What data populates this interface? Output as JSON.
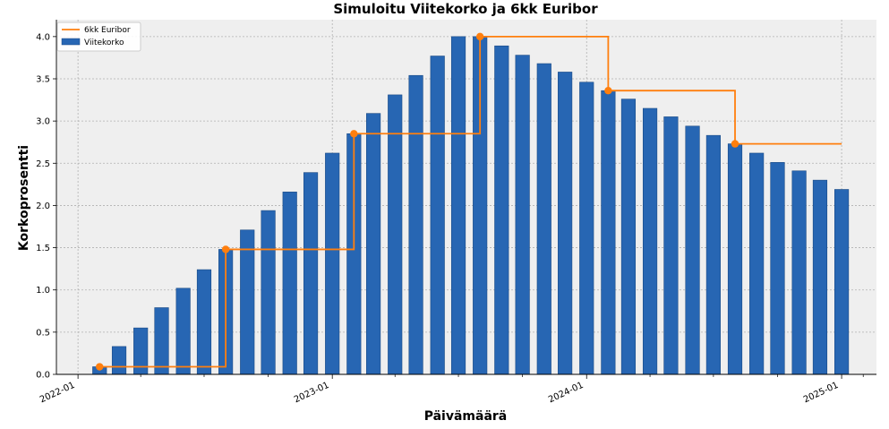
{
  "chart_data": {
    "type": "bar",
    "title": "Simuloitu Viitekorko ja 6kk Euribor",
    "xlabel": "Päivämäärä",
    "ylabel": "Korkoprosentti",
    "ylim": [
      0,
      4.2
    ],
    "y_ticks": [
      0.0,
      0.5,
      1.0,
      1.5,
      2.0,
      2.5,
      3.0,
      3.5,
      4.0
    ],
    "y_tick_labels": [
      "0.0",
      "0.5",
      "1.0",
      "1.5",
      "2.0",
      "2.5",
      "3.0",
      "3.5",
      "4.0"
    ],
    "x_range": [
      "2021-12-01",
      "2025-02-20"
    ],
    "x_major_ticks": [
      "2022-01-01",
      "2023-01-01",
      "2024-01-01",
      "2025-01-01"
    ],
    "x_major_tick_labels": [
      "2022-01",
      "2023-01",
      "2024-01",
      "2025-01"
    ],
    "x_minor_ticks": [
      "2022-04-01",
      "2022-07-01",
      "2022-10-01",
      "2023-04-01",
      "2023-07-01",
      "2023-10-01",
      "2024-04-01",
      "2024-07-01",
      "2024-10-01",
      "2025-02-01"
    ],
    "grid": true,
    "legend_position": "upper-left",
    "colors": {
      "bar_fill": "#2766b3",
      "bar_edge": "#1a4a85",
      "line": "#ff7f0e",
      "plot_background": "#efefef",
      "grid": "#b0b0b0"
    },
    "series": [
      {
        "name": "Viitekorko",
        "kind": "bar",
        "x": [
          "2022-02-01",
          "2022-03-01",
          "2022-04-01",
          "2022-05-01",
          "2022-06-01",
          "2022-07-01",
          "2022-08-01",
          "2022-09-01",
          "2022-10-01",
          "2022-11-01",
          "2022-12-01",
          "2023-01-01",
          "2023-02-01",
          "2023-03-01",
          "2023-04-01",
          "2023-05-01",
          "2023-06-01",
          "2023-07-01",
          "2023-08-01",
          "2023-09-01",
          "2023-10-01",
          "2023-11-01",
          "2023-12-01",
          "2024-01-01",
          "2024-02-01",
          "2024-03-01",
          "2024-04-01",
          "2024-05-01",
          "2024-06-01",
          "2024-07-01",
          "2024-08-01",
          "2024-09-01",
          "2024-10-01",
          "2024-11-01",
          "2024-12-01",
          "2025-01-01"
        ],
        "values": [
          0.09,
          0.33,
          0.55,
          0.79,
          1.02,
          1.24,
          1.48,
          1.71,
          1.94,
          2.16,
          2.39,
          2.62,
          2.85,
          3.09,
          3.31,
          3.54,
          3.77,
          4.0,
          4.0,
          3.89,
          3.78,
          3.68,
          3.58,
          3.46,
          3.36,
          3.26,
          3.15,
          3.05,
          2.94,
          2.83,
          2.73,
          2.62,
          2.51,
          2.41,
          2.3,
          2.19
        ]
      },
      {
        "name": "6kk Euribor",
        "kind": "step",
        "x": [
          "2022-02-01",
          "2022-08-01",
          "2023-02-01",
          "2023-08-01",
          "2024-02-01",
          "2024-08-01"
        ],
        "values": [
          0.09,
          1.48,
          2.85,
          4.0,
          3.36,
          2.73
        ],
        "x_end": "2025-01-01"
      }
    ]
  }
}
